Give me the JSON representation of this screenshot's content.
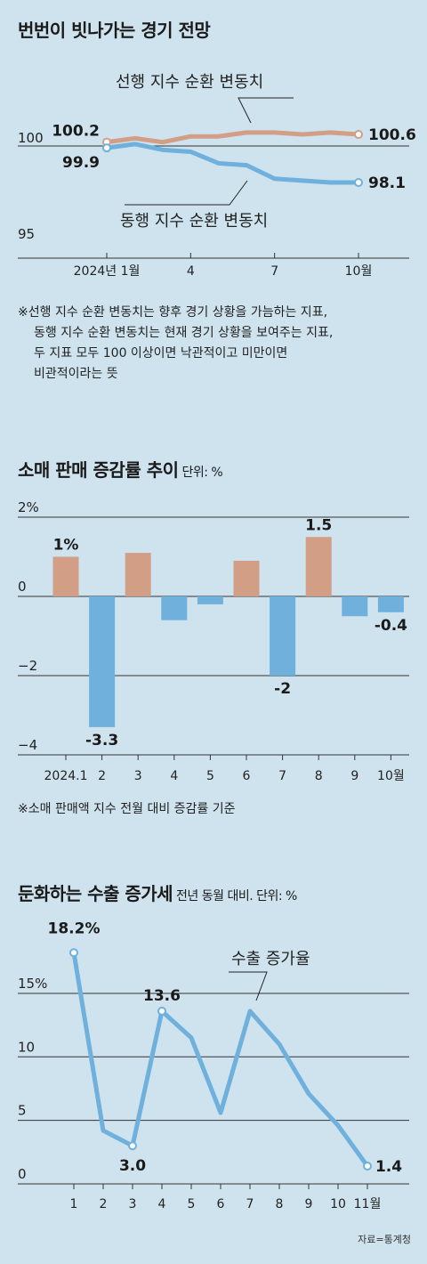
{
  "colors": {
    "background": "#cfe3ee",
    "orange": "#d29e85",
    "blue": "#6fb0dc",
    "axis": "#333333"
  },
  "sections": {
    "leading": {
      "title": "번번이 빗나가는 경기 전망",
      "note": [
        "※선행 지수 순환 변동치는 향후 경기 상황을 가늠하는 지표,",
        "동행 지수 순환 변동치는 현재 경기 상황을 보여주는 지표,",
        "두 지표 모두 100 이상이면 낙관적이고 미만이면",
        "비관적이라는 뜻"
      ]
    },
    "retail": {
      "title": "소매 판매 증감률 추이",
      "unit": "단위: %",
      "note": "※소매 판매액 지수 전월 대비 증감률 기준"
    },
    "exports": {
      "title": "둔화하는 수출 증가세",
      "unit": "전년 동월 대비. 단위: %",
      "source": "자료=통계청"
    }
  },
  "chart_data": [
    {
      "type": "line",
      "title": "번번이 빗나가는 경기 전망",
      "x": [
        1,
        2,
        3,
        4,
        5,
        6,
        7,
        8,
        9,
        10
      ],
      "x_ticks": [
        1,
        4,
        7,
        10
      ],
      "x_tick_labels": [
        "2024년 1월",
        "4",
        "7",
        "10월"
      ],
      "y_ticks": [
        95,
        100
      ],
      "y_tick_labels": [
        "95",
        "100"
      ],
      "ylim": [
        95,
        101
      ],
      "reference_line": 100,
      "series": [
        {
          "name": "선행 지수 순환 변동치",
          "color": "#d29e85",
          "values": [
            100.2,
            100.4,
            100.2,
            100.5,
            100.5,
            100.7,
            100.7,
            100.6,
            100.7,
            100.6
          ],
          "start_label": "100.2",
          "end_label": "100.6"
        },
        {
          "name": "동행 지수 순환 변동치",
          "color": "#6fb0dc",
          "values": [
            99.9,
            100.1,
            99.8,
            99.7,
            99.1,
            99.0,
            98.3,
            98.2,
            98.1,
            98.1
          ],
          "start_label": "99.9",
          "end_label": "98.1"
        }
      ]
    },
    {
      "type": "bar",
      "title": "소매 판매 증감률 추이",
      "categories": [
        "2024.1",
        "2",
        "3",
        "4",
        "5",
        "6",
        "7",
        "8",
        "9",
        "10월"
      ],
      "values": [
        1.0,
        -3.3,
        1.1,
        -0.6,
        -0.2,
        0.9,
        -2.0,
        1.5,
        -0.5,
        -0.4
      ],
      "data_labels": [
        "1%",
        "-3.3",
        "",
        "",
        "",
        "",
        "-2",
        "1.5",
        "",
        "-0.4"
      ],
      "y_ticks": [
        2,
        0,
        -2,
        -4
      ],
      "y_tick_labels": [
        "2%",
        "0",
        "−2",
        "−4"
      ],
      "ylim": [
        -4,
        2
      ],
      "positive_color": "#d29e85",
      "negative_color": "#6fb0dc"
    },
    {
      "type": "line",
      "title": "둔화하는 수출 증가세",
      "x": [
        1,
        2,
        3,
        4,
        5,
        6,
        7,
        8,
        9,
        10,
        11
      ],
      "x_tick_labels": [
        "1",
        "2",
        "3",
        "4",
        "5",
        "6",
        "7",
        "8",
        "9",
        "10",
        "11월"
      ],
      "y_ticks": [
        0,
        5,
        10,
        15
      ],
      "y_tick_labels": [
        "0",
        "5",
        "10",
        "15%"
      ],
      "ylim": [
        0,
        20
      ],
      "series": [
        {
          "name": "수출 증가율",
          "color": "#6fb0dc",
          "values": [
            18.2,
            4.2,
            3.0,
            13.6,
            11.5,
            5.6,
            13.6,
            11.0,
            7.1,
            4.6,
            1.4
          ]
        }
      ],
      "data_labels": {
        "1": "18.2%",
        "3": "3.0",
        "4": "13.6",
        "11": "1.4"
      }
    }
  ]
}
